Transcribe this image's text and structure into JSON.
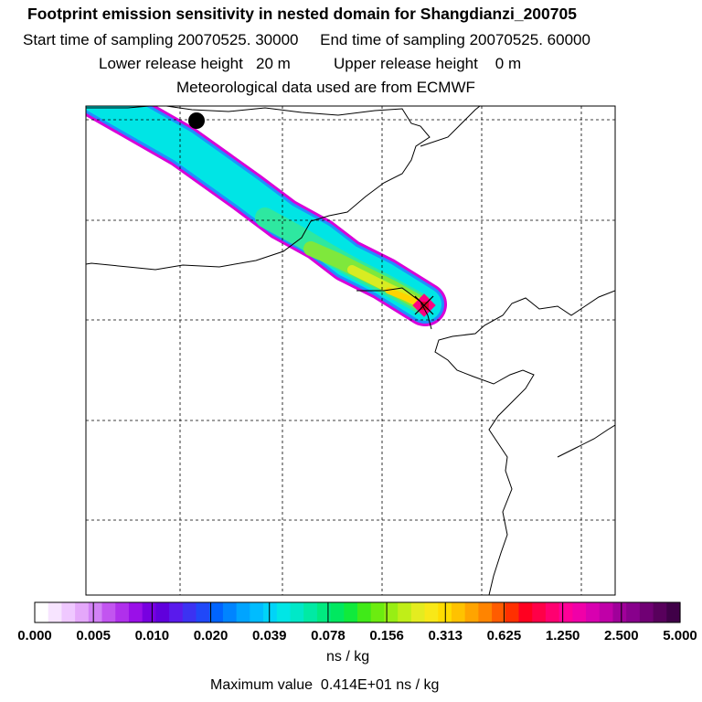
{
  "header": {
    "title": "Footprint emission sensitivity in nested domain for Shangdianzi_200705",
    "start_label": "Start time of sampling 20070525. 30000",
    "end_label": "End time of sampling 20070525. 60000",
    "lower_label": "Lower release height",
    "lower_value": "20 m",
    "upper_label": "Upper release height",
    "upper_value": "0 m",
    "met_line": "Meteorological data used are from ECMWF"
  },
  "map": {
    "station_name": "Shangdianzi",
    "source_marker": "black-dot",
    "release_marker": "x-marker",
    "plume_colors": [
      "#d800d8",
      "#1e90ff",
      "#00e5e5",
      "#2ee8a0",
      "#7fe83c",
      "#d8ec22",
      "#ffd400",
      "#ff2a2a"
    ]
  },
  "colorbar": {
    "tick_labels": [
      "0.000",
      "0.005",
      "0.010",
      "0.020",
      "0.039",
      "0.078",
      "0.156",
      "0.313",
      "0.625",
      "1.250",
      "2.500",
      "5.000"
    ],
    "colors": [
      "#ffffff",
      "#f7e4ff",
      "#efc8ff",
      "#e4a8fa",
      "#d282f6",
      "#c255f0",
      "#b030ec",
      "#9a10e8",
      "#7800e0",
      "#6000dc",
      "#5a1aec",
      "#3c32f2",
      "#2048f8",
      "#0064ff",
      "#0084ff",
      "#00a4ff",
      "#00bcff",
      "#00d4f8",
      "#00e6e6",
      "#00e8c8",
      "#00eaa4",
      "#00ea80",
      "#00e860",
      "#10ea3c",
      "#40ea18",
      "#6cec10",
      "#98ee14",
      "#c0ee18",
      "#e4ec20",
      "#f8e818",
      "#ffdc00",
      "#ffc200",
      "#ffa400",
      "#ff8400",
      "#ff5c00",
      "#ff3000",
      "#ff0020",
      "#ff0048",
      "#ff0070",
      "#ff0098",
      "#f000a8",
      "#d800b0",
      "#c000a8",
      "#a0009a",
      "#88008c",
      "#700074",
      "#58005c",
      "#400048"
    ],
    "units": "ns / kg",
    "max_label": "Maximum value",
    "max_value": "0.414E+01",
    "max_units": "ns / kg"
  }
}
